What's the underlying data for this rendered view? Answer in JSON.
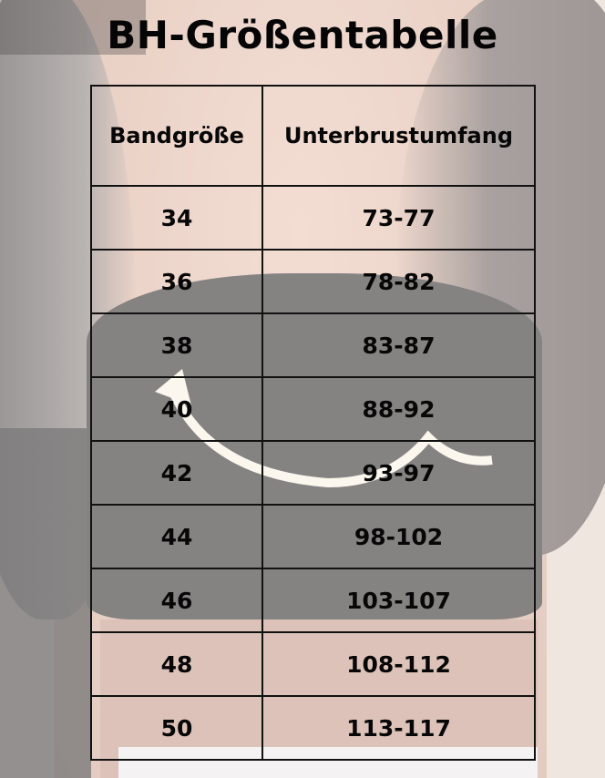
{
  "title": "BH-Größentabelle",
  "table": {
    "headers": [
      "Bandgröße",
      "Unterbrustumfang"
    ],
    "rows": [
      [
        "34",
        "73-77"
      ],
      [
        "36",
        "78-82"
      ],
      [
        "38",
        "83-87"
      ],
      [
        "40",
        "88-92"
      ],
      [
        "42",
        "93-97"
      ],
      [
        "44",
        "98-102"
      ],
      [
        "46",
        "103-107"
      ],
      [
        "48",
        "108-112"
      ],
      [
        "50",
        "113-117"
      ]
    ]
  }
}
